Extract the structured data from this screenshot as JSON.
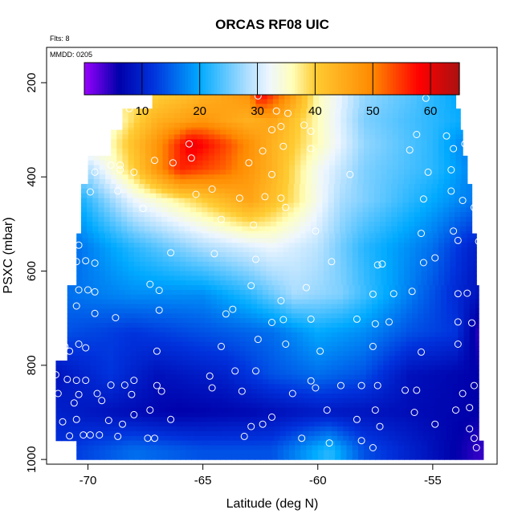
{
  "chart_data": {
    "type": "heatmap",
    "title": "ORCAS RF08 UIC",
    "flts_label": "Flts: 8",
    "mmdd_label": "MMDD: 0205",
    "xlabel": "Latitude (deg N)",
    "ylabel": "PSXC (mbar)",
    "xlim": [
      -71.8,
      -52.2
    ],
    "ylim": [
      1010,
      125
    ],
    "x_ticks": [
      -70,
      -65,
      -60,
      -55
    ],
    "x_tick_labels": [
      "-70",
      "-65",
      "-60",
      "-55"
    ],
    "y_ticks": [
      200,
      400,
      600,
      800,
      1000
    ],
    "y_tick_labels": [
      "200",
      "400",
      "600",
      "800",
      "1000"
    ],
    "colorbar": {
      "range": [
        0,
        65
      ],
      "ticks": [
        10,
        20,
        30,
        40,
        50,
        60
      ],
      "tick_labels": [
        "10",
        "20",
        "30",
        "40",
        "50",
        "60"
      ],
      "boundaries": [
        10,
        20,
        30,
        40,
        50,
        60
      ]
    },
    "colormap_stops": [
      {
        "v": 0,
        "color": "#9900ff"
      },
      {
        "v": 6,
        "color": "#0000aa"
      },
      {
        "v": 12,
        "color": "#0033dd"
      },
      {
        "v": 20,
        "color": "#00aaff"
      },
      {
        "v": 28,
        "color": "#aaddff"
      },
      {
        "v": 32,
        "color": "#eef6ff"
      },
      {
        "v": 36,
        "color": "#ffffbb"
      },
      {
        "v": 40,
        "color": "#ffcc33"
      },
      {
        "v": 50,
        "color": "#ff8800"
      },
      {
        "v": 58,
        "color": "#ff0000"
      },
      {
        "v": 65,
        "color": "#aa1111"
      }
    ],
    "band_extents": [
      {
        "p_top": 170,
        "p_bot": 225,
        "lat_min": -67.8,
        "lat_max": -54.5
      },
      {
        "p_top": 225,
        "p_bot": 255,
        "lat_min": -67.2,
        "lat_max": -54.0
      },
      {
        "p_top": 255,
        "p_bot": 300,
        "lat_min": -68.5,
        "lat_max": -53.8
      },
      {
        "p_top": 300,
        "p_bot": 355,
        "lat_min": -69.0,
        "lat_max": -53.7
      },
      {
        "p_top": 355,
        "p_bot": 415,
        "lat_min": -70.0,
        "lat_max": -53.5
      },
      {
        "p_top": 415,
        "p_bot": 520,
        "lat_min": -70.3,
        "lat_max": -53.3
      },
      {
        "p_top": 520,
        "p_bot": 630,
        "lat_min": -70.5,
        "lat_max": -53.1
      },
      {
        "p_top": 630,
        "p_bot": 790,
        "lat_min": -70.9,
        "lat_max": -53.0
      },
      {
        "p_top": 790,
        "p_bot": 960,
        "lat_min": -71.4,
        "lat_max": -53.0
      },
      {
        "p_top": 960,
        "p_bot": 1000,
        "lat_min": -70.5,
        "lat_max": -52.8
      }
    ],
    "field_profiles": [
      {
        "p": 180,
        "vals": [
          [
            -68,
            36
          ],
          [
            -65,
            40
          ],
          [
            -63,
            44
          ],
          [
            -62.5,
            60
          ],
          [
            -61.5,
            52
          ],
          [
            -60,
            34
          ],
          [
            -58,
            27
          ],
          [
            -56,
            23
          ],
          [
            -54.5,
            22
          ]
        ]
      },
      {
        "p": 230,
        "vals": [
          [
            -68,
            38
          ],
          [
            -65,
            44
          ],
          [
            -63,
            48
          ],
          [
            -62.5,
            58
          ],
          [
            -61.5,
            50
          ],
          [
            -60,
            36
          ],
          [
            -58,
            27
          ],
          [
            -56,
            24
          ],
          [
            -54,
            20
          ]
        ]
      },
      {
        "p": 280,
        "vals": [
          [
            -69,
            34
          ],
          [
            -67,
            44
          ],
          [
            -65,
            48
          ],
          [
            -63,
            44
          ],
          [
            -62,
            46
          ],
          [
            -60,
            36
          ],
          [
            -58,
            26
          ],
          [
            -55,
            22
          ],
          [
            -53.5,
            20
          ]
        ]
      },
      {
        "p": 330,
        "vals": [
          [
            -69,
            36
          ],
          [
            -67,
            48
          ],
          [
            -65.5,
            60
          ],
          [
            -64,
            54
          ],
          [
            -62,
            44
          ],
          [
            -60,
            36
          ],
          [
            -58,
            27
          ],
          [
            -55,
            22
          ],
          [
            -53.5,
            17
          ]
        ]
      },
      {
        "p": 385,
        "vals": [
          [
            -70,
            28
          ],
          [
            -68,
            40
          ],
          [
            -66,
            56
          ],
          [
            -64,
            52
          ],
          [
            -62,
            44
          ],
          [
            -60,
            33
          ],
          [
            -58,
            26
          ],
          [
            -55,
            22
          ],
          [
            -53.5,
            18
          ]
        ]
      },
      {
        "p": 450,
        "vals": [
          [
            -70.5,
            20
          ],
          [
            -68,
            32
          ],
          [
            -65,
            40
          ],
          [
            -63,
            46
          ],
          [
            -61,
            38
          ],
          [
            -59,
            28
          ],
          [
            -56,
            22
          ],
          [
            -53.5,
            17
          ]
        ]
      },
      {
        "p": 550,
        "vals": [
          [
            -70.5,
            16
          ],
          [
            -68,
            22
          ],
          [
            -65,
            28
          ],
          [
            -62,
            32
          ],
          [
            -60,
            29
          ],
          [
            -58,
            22
          ],
          [
            -55,
            16
          ],
          [
            -53.3,
            10
          ]
        ]
      },
      {
        "p": 650,
        "vals": [
          [
            -71,
            16
          ],
          [
            -68,
            18
          ],
          [
            -65,
            18
          ],
          [
            -63,
            22
          ],
          [
            -61,
            28
          ],
          [
            -59,
            26
          ],
          [
            -57,
            20
          ],
          [
            -55,
            14
          ],
          [
            -53,
            8
          ]
        ]
      },
      {
        "p": 730,
        "vals": [
          [
            -71,
            14
          ],
          [
            -68,
            12
          ],
          [
            -65,
            14
          ],
          [
            -62,
            16
          ],
          [
            -60,
            20
          ],
          [
            -58,
            18
          ],
          [
            -56,
            14
          ],
          [
            -54,
            12
          ],
          [
            -53,
            4
          ]
        ]
      },
      {
        "p": 820,
        "vals": [
          [
            -71.5,
            8
          ],
          [
            -69,
            12
          ],
          [
            -67,
            8
          ],
          [
            -64,
            10
          ],
          [
            -62,
            14
          ],
          [
            -60,
            16
          ],
          [
            -58,
            14
          ],
          [
            -56,
            8
          ],
          [
            -53,
            6
          ]
        ]
      },
      {
        "p": 900,
        "vals": [
          [
            -71.5,
            10
          ],
          [
            -69,
            8
          ],
          [
            -66,
            6
          ],
          [
            -63,
            7
          ],
          [
            -60,
            9
          ],
          [
            -57,
            8
          ],
          [
            -55,
            7
          ],
          [
            -53,
            6
          ]
        ]
      },
      {
        "p": 980,
        "vals": [
          [
            -71,
            12
          ],
          [
            -68,
            16
          ],
          [
            -65,
            14
          ],
          [
            -62,
            14
          ],
          [
            -59.5,
            22
          ],
          [
            -58,
            14
          ],
          [
            -56,
            10
          ],
          [
            -53,
            4
          ]
        ]
      }
    ],
    "observation_points": [
      [
        -67.7,
        193
      ],
      [
        -67.2,
        193
      ],
      [
        -66.6,
        193
      ],
      [
        -66.0,
        193
      ],
      [
        -65.4,
        193
      ],
      [
        -64.9,
        193
      ],
      [
        -64.4,
        193
      ],
      [
        -63.9,
        193
      ],
      [
        -63.4,
        193
      ],
      [
        -62.6,
        193
      ],
      [
        -61.3,
        193
      ],
      [
        -60.6,
        193
      ],
      [
        -60.1,
        193
      ],
      [
        -59.6,
        193
      ],
      [
        -59.1,
        193
      ],
      [
        -58.6,
        193
      ],
      [
        -57.6,
        193
      ],
      [
        -56.6,
        193
      ],
      [
        -56.1,
        193
      ],
      [
        -55.6,
        193
      ],
      [
        -62.5,
        200
      ],
      [
        -54.7,
        205
      ],
      [
        -67.4,
        228
      ],
      [
        -62.6,
        228
      ],
      [
        -61.8,
        260
      ],
      [
        -55.3,
        233
      ],
      [
        -68.2,
        255
      ],
      [
        -61.3,
        265
      ],
      [
        -61.6,
        293
      ],
      [
        -62.0,
        300
      ],
      [
        -60.3,
        303
      ],
      [
        -60.6,
        290
      ],
      [
        -54.4,
        313
      ],
      [
        -53.6,
        330
      ],
      [
        -55.7,
        310
      ],
      [
        -65.6,
        330
      ],
      [
        -61.5,
        335
      ],
      [
        -60.3,
        340
      ],
      [
        -67.1,
        365
      ],
      [
        -66.3,
        370
      ],
      [
        -65.5,
        360
      ],
      [
        -69.0,
        375
      ],
      [
        -62.4,
        345
      ],
      [
        -63.0,
        370
      ],
      [
        -56.0,
        343
      ],
      [
        -54.1,
        340
      ],
      [
        -69.7,
        390
      ],
      [
        -68.6,
        385
      ],
      [
        -68.0,
        390
      ],
      [
        -68.6,
        375
      ],
      [
        -62.0,
        395
      ],
      [
        -58.6,
        395
      ],
      [
        -55.2,
        390
      ],
      [
        -53.2,
        400
      ],
      [
        -54.2,
        385
      ],
      [
        -68.7,
        430
      ],
      [
        -69.9,
        432
      ],
      [
        -65.3,
        437
      ],
      [
        -64.6,
        426
      ],
      [
        -63.4,
        445
      ],
      [
        -62.3,
        442
      ],
      [
        -61.6,
        445
      ],
      [
        -61.4,
        465
      ],
      [
        -55.4,
        447
      ],
      [
        -53.7,
        450
      ],
      [
        -54.2,
        430
      ],
      [
        -53.2,
        465
      ],
      [
        -67.6,
        467
      ],
      [
        -64.2,
        490
      ],
      [
        -62.8,
        502
      ],
      [
        -60.1,
        515
      ],
      [
        -55.5,
        520
      ],
      [
        -54.1,
        515
      ],
      [
        -53.9,
        535
      ],
      [
        -53.0,
        537
      ],
      [
        -70.4,
        545
      ],
      [
        -69.7,
        583
      ],
      [
        -70.5,
        580
      ],
      [
        -70.1,
        578
      ],
      [
        -66.4,
        561
      ],
      [
        -64.5,
        563
      ],
      [
        -62.7,
        575
      ],
      [
        -59.4,
        580
      ],
      [
        -57.4,
        587
      ],
      [
        -57.2,
        585
      ],
      [
        -55.4,
        582
      ],
      [
        -54.9,
        572
      ],
      [
        -70.0,
        640
      ],
      [
        -70.4,
        640
      ],
      [
        -69.7,
        644
      ],
      [
        -67.3,
        628
      ],
      [
        -66.9,
        641
      ],
      [
        -62.9,
        631
      ],
      [
        -61.6,
        663
      ],
      [
        -60.5,
        635
      ],
      [
        -57.6,
        649
      ],
      [
        -56.7,
        648
      ],
      [
        -55.9,
        643
      ],
      [
        -53.9,
        648
      ],
      [
        -53.5,
        647
      ],
      [
        -70.5,
        674
      ],
      [
        -69.7,
        690
      ],
      [
        -68.8,
        699
      ],
      [
        -66.9,
        683
      ],
      [
        -63.7,
        681
      ],
      [
        -64.0,
        691
      ],
      [
        -62.0,
        709
      ],
      [
        -61.5,
        703
      ],
      [
        -60.3,
        702
      ],
      [
        -58.3,
        702
      ],
      [
        -57.5,
        712
      ],
      [
        -56.9,
        708
      ],
      [
        -53.9,
        708
      ],
      [
        -53.3,
        710
      ],
      [
        -70.4,
        755
      ],
      [
        -71.0,
        760
      ],
      [
        -70.8,
        770
      ],
      [
        -70.1,
        763
      ],
      [
        -67.0,
        770
      ],
      [
        -64.2,
        760
      ],
      [
        -62.6,
        745
      ],
      [
        -61.4,
        755
      ],
      [
        -59.9,
        770
      ],
      [
        -57.6,
        760
      ],
      [
        -55.5,
        772
      ],
      [
        -53.9,
        755
      ],
      [
        -71.4,
        820
      ],
      [
        -70.9,
        830
      ],
      [
        -70.5,
        832
      ],
      [
        -70.1,
        832
      ],
      [
        -69.0,
        842
      ],
      [
        -68.4,
        842
      ],
      [
        -68.0,
        832
      ],
      [
        -67.0,
        843
      ],
      [
        -64.7,
        823
      ],
      [
        -63.6,
        812
      ],
      [
        -62.7,
        812
      ],
      [
        -60.3,
        833
      ],
      [
        -59.0,
        843
      ],
      [
        -58.1,
        843
      ],
      [
        -57.4,
        843
      ],
      [
        -56.2,
        853
      ],
      [
        -55.7,
        853
      ],
      [
        -53.2,
        843
      ],
      [
        -71.3,
        860
      ],
      [
        -70.4,
        862
      ],
      [
        -69.6,
        860
      ],
      [
        -68.1,
        862
      ],
      [
        -66.8,
        855
      ],
      [
        -64.6,
        848
      ],
      [
        -63.3,
        855
      ],
      [
        -61.1,
        860
      ],
      [
        -60.1,
        848
      ],
      [
        -53.7,
        860
      ],
      [
        -70.6,
        880
      ],
      [
        -69.4,
        875
      ],
      [
        -68.0,
        905
      ],
      [
        -67.3,
        895
      ],
      [
        -62.0,
        910
      ],
      [
        -59.6,
        895
      ],
      [
        -57.5,
        895
      ],
      [
        -55.8,
        900
      ],
      [
        -54.0,
        895
      ],
      [
        -53.4,
        890
      ],
      [
        -71.1,
        920
      ],
      [
        -70.5,
        915
      ],
      [
        -69.1,
        917
      ],
      [
        -68.5,
        925
      ],
      [
        -66.4,
        915
      ],
      [
        -62.9,
        930
      ],
      [
        -62.4,
        925
      ],
      [
        -58.3,
        915
      ],
      [
        -57.3,
        930
      ],
      [
        -54.9,
        925
      ],
      [
        -53.4,
        935
      ],
      [
        -70.8,
        950
      ],
      [
        -70.2,
        948
      ],
      [
        -69.9,
        948
      ],
      [
        -69.5,
        948
      ],
      [
        -68.7,
        951
      ],
      [
        -67.4,
        955
      ],
      [
        -67.1,
        955
      ],
      [
        -63.2,
        951
      ],
      [
        -60.7,
        955
      ],
      [
        -59.5,
        965
      ],
      [
        -58.1,
        960
      ],
      [
        -57.6,
        975
      ],
      [
        -53.2,
        955
      ],
      [
        -53.1,
        975
      ]
    ],
    "marker_colors": {
      "point": "#ffffff"
    },
    "colors": {
      "frame": "#000000",
      "background": "#ffffff"
    }
  }
}
